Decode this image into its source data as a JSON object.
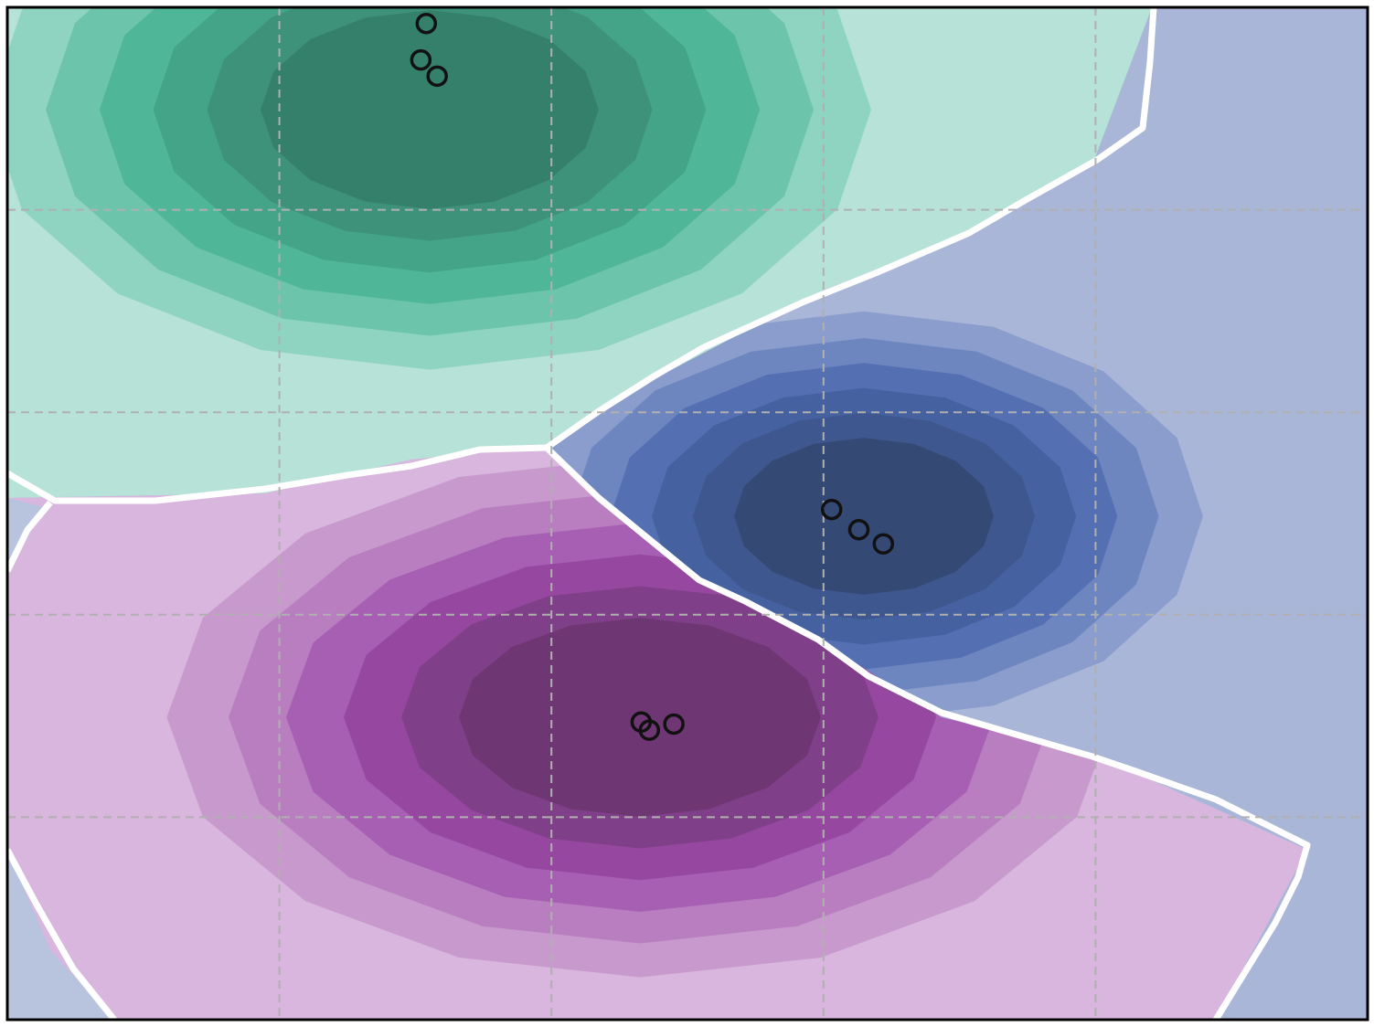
{
  "chart_data": {
    "type": "heatmap",
    "subtype": "classifier-probability-contour",
    "title": "",
    "xlabel": "",
    "ylabel": "",
    "xlim": [
      0,
      5
    ],
    "ylim": [
      0,
      5
    ],
    "grid": true,
    "grid_style": "dashed",
    "axis_tick_labels": false,
    "legend": "none",
    "colors": {
      "background_region": "#b8c3de",
      "boundary_line": "#ffffff",
      "grid_line": "#b0b0b0",
      "frame": "#000000",
      "marker_edge": "#111111"
    },
    "classes": [
      {
        "name": "",
        "center": [
          1.62,
          4.6
        ],
        "ramp": [
          "#b7e2d8",
          "#8fd3c1",
          "#6cc4aa",
          "#4fb797",
          "#44a487",
          "#3e9279",
          "#35806a"
        ],
        "points": [
          [
            1.54,
            4.92
          ],
          [
            1.52,
            4.74
          ],
          [
            1.58,
            4.66
          ]
        ]
      },
      {
        "name": "",
        "center": [
          3.2,
          2.5
        ],
        "ramp": [
          "#a9b6d8",
          "#8a9dcc",
          "#6e86c0",
          "#5570b2",
          "#4661a0",
          "#3e578e",
          "#354975"
        ],
        "points": [
          [
            3.03,
            2.52
          ],
          [
            3.13,
            2.42
          ],
          [
            3.22,
            2.35
          ]
        ]
      },
      {
        "name": "",
        "center": [
          2.45,
          1.4
        ],
        "ramp": [
          "#d9b6dd",
          "#c899cc",
          "#b87ec0",
          "#a65fb2",
          "#96479f",
          "#804089",
          "#6f3674"
        ],
        "points": [
          [
            2.33,
            1.47
          ],
          [
            2.36,
            1.43
          ],
          [
            2.45,
            1.46
          ]
        ]
      }
    ]
  }
}
